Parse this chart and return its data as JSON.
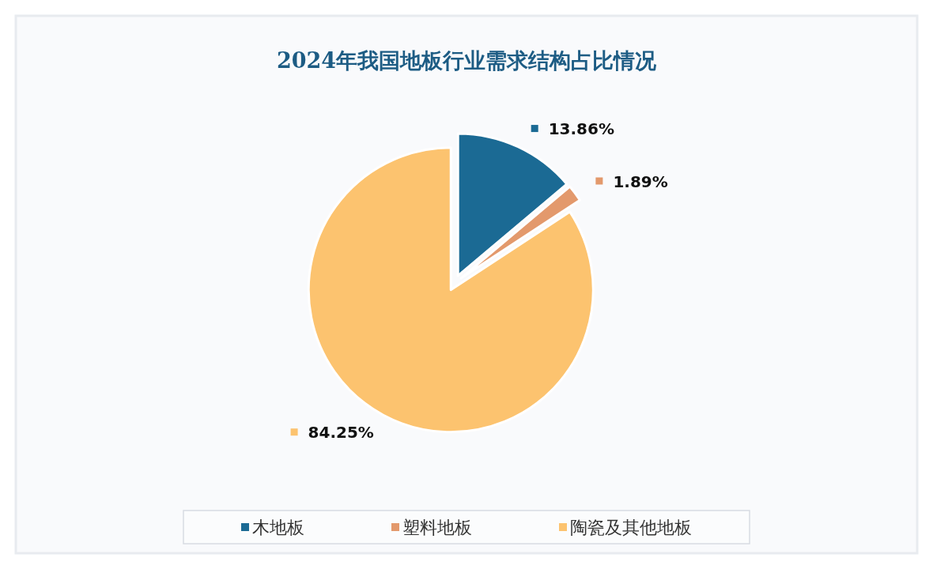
{
  "chart_data": {
    "type": "pie",
    "title": "2024年我国地板行业需求结构占比情况",
    "categories": [
      "木地板",
      "塑料地板",
      "陶瓷及其他地板"
    ],
    "values": [
      13.86,
      1.89,
      84.25
    ],
    "colors": [
      "#1b6a94",
      "#e3996c",
      "#fcc36f"
    ],
    "value_labels": [
      "13.86%",
      "1.89%",
      "84.25%"
    ],
    "legend": "bottom"
  }
}
